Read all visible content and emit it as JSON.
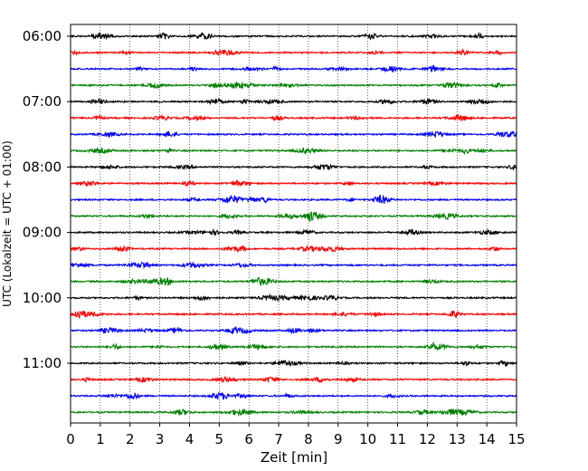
{
  "chart_data": {
    "type": "line",
    "subtype": "helicorder seismogram",
    "title": "",
    "xlabel": "Zeit  [min]",
    "ylabel": "UTC (Lokalzeit = UTC + 01:00)",
    "xlim": [
      0,
      15
    ],
    "x_ticks": [
      "0",
      "1",
      "2",
      "3",
      "4",
      "5",
      "6",
      "7",
      "8",
      "9",
      "10",
      "11",
      "12",
      "13",
      "14",
      "15"
    ],
    "y_ticks": [
      "06:00",
      "07:00",
      "08:00",
      "09:00",
      "10:00",
      "11:00"
    ],
    "grid": "vertical dotted lines at each minute",
    "trace_minutes": 15,
    "trace_colors": [
      "#000000",
      "#ff0000",
      "#0000ff",
      "#008000"
    ],
    "traces": [
      {
        "start": "06:00",
        "color": "#000000"
      },
      {
        "start": "06:15",
        "color": "#ff0000"
      },
      {
        "start": "06:30",
        "color": "#0000ff"
      },
      {
        "start": "06:45",
        "color": "#008000"
      },
      {
        "start": "07:00",
        "color": "#000000"
      },
      {
        "start": "07:15",
        "color": "#ff0000"
      },
      {
        "start": "07:30",
        "color": "#0000ff"
      },
      {
        "start": "07:45",
        "color": "#008000"
      },
      {
        "start": "08:00",
        "color": "#000000"
      },
      {
        "start": "08:15",
        "color": "#ff0000"
      },
      {
        "start": "08:30",
        "color": "#0000ff"
      },
      {
        "start": "08:45",
        "color": "#008000"
      },
      {
        "start": "09:00",
        "color": "#000000"
      },
      {
        "start": "09:15",
        "color": "#ff0000"
      },
      {
        "start": "09:30",
        "color": "#0000ff"
      },
      {
        "start": "09:45",
        "color": "#008000"
      },
      {
        "start": "10:00",
        "color": "#000000"
      },
      {
        "start": "10:15",
        "color": "#ff0000"
      },
      {
        "start": "10:30",
        "color": "#0000ff"
      },
      {
        "start": "10:45",
        "color": "#008000"
      },
      {
        "start": "11:00",
        "color": "#000000"
      },
      {
        "start": "11:15",
        "color": "#ff0000"
      },
      {
        "start": "11:30",
        "color": "#0000ff"
      },
      {
        "start": "11:45",
        "color": "#008000"
      }
    ]
  }
}
